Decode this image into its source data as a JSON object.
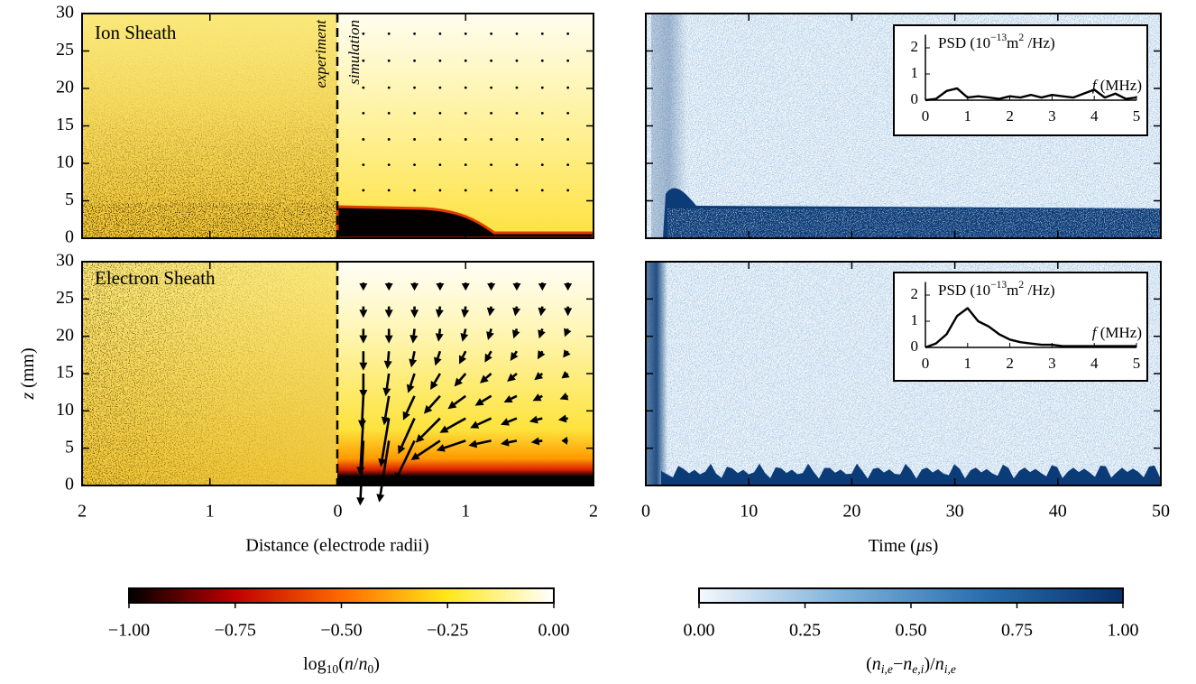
{
  "chart_data": [
    {
      "type": "heatmap",
      "title": "Ion Sheath",
      "annotations": [
        "experiment",
        "simulation"
      ],
      "xlim": [
        -2,
        2
      ],
      "xticks": [
        {
          "value": -2,
          "label": "2"
        },
        {
          "value": -1,
          "label": "1"
        },
        0,
        1,
        2
      ],
      "ylim": [
        0,
        30
      ],
      "yticks": [
        0,
        5,
        10,
        15,
        20,
        25,
        30
      ],
      "ylabel": [
        "z",
        " (mm)"
      ],
      "quiver_x": [
        0.2,
        0.4,
        0.6,
        0.8,
        1.0,
        1.2,
        1.4,
        1.6,
        1.8
      ],
      "quiver_z": [
        27.3,
        23.7,
        20.1,
        16.7,
        13.2,
        9.8,
        6.4
      ]
    },
    {
      "type": "heatmap",
      "title": "Electron Sheath",
      "xlim": [
        -2,
        2
      ],
      "xticks": [
        {
          "value": -2,
          "label": "2"
        },
        {
          "value": -1,
          "label": "1"
        },
        0,
        1,
        2
      ],
      "ylim": [
        0,
        30
      ],
      "yticks": [
        0,
        5,
        10,
        15,
        20,
        25,
        30
      ],
      "xlabel": "Distance (electrode radii)",
      "quiver_x": [
        0.2,
        0.4,
        0.6,
        0.8,
        1.0,
        1.2,
        1.4,
        1.6,
        1.8
      ],
      "quiver_z": [
        27.2,
        24,
        21,
        18,
        15,
        12,
        9,
        6
      ],
      "quiver_u": [
        [
          0,
          0,
          0,
          0,
          0,
          0,
          0,
          0,
          0
        ],
        [
          0,
          0,
          0,
          -0.1,
          -0.1,
          -0.1,
          -0.1,
          -0.1,
          0
        ],
        [
          0,
          0,
          -0.1,
          -0.1,
          -0.2,
          -0.2,
          -0.2,
          -0.2,
          -0.2
        ],
        [
          0,
          -0.1,
          -0.2,
          -0.3,
          -0.4,
          -0.4,
          -0.4,
          -0.3,
          -0.3
        ],
        [
          0,
          -0.2,
          -0.4,
          -0.6,
          -0.7,
          -0.7,
          -0.6,
          -0.5,
          -0.4
        ],
        [
          -0.1,
          -0.3,
          -0.7,
          -1.0,
          -1.1,
          -1.0,
          -0.8,
          -0.6,
          -0.5
        ],
        [
          -0.2,
          -0.5,
          -1.0,
          -1.5,
          -1.6,
          -1.3,
          -1.0,
          -0.8,
          -0.6
        ],
        [
          -0.2,
          -0.6,
          -1.2,
          -1.8,
          -1.8,
          -1.4,
          -1.0,
          -0.7,
          -0.4
        ]
      ],
      "quiver_w": [
        [
          -0.5,
          -0.5,
          -0.5,
          -0.5,
          -0.5,
          -0.5,
          -0.5,
          -0.5,
          -0.5
        ],
        [
          -0.7,
          -0.7,
          -0.7,
          -0.7,
          -0.7,
          -0.6,
          -0.6,
          -0.6,
          -0.6
        ],
        [
          -0.9,
          -0.9,
          -0.9,
          -0.8,
          -0.8,
          -0.7,
          -0.6,
          -0.6,
          -0.5
        ],
        [
          -1.2,
          -1.1,
          -1.0,
          -0.9,
          -0.8,
          -0.7,
          -0.6,
          -0.5,
          -0.4
        ],
        [
          -1.5,
          -1.4,
          -1.2,
          -1.0,
          -0.8,
          -0.6,
          -0.5,
          -0.4,
          -0.3
        ],
        [
          -2.0,
          -1.8,
          -1.5,
          -1.1,
          -0.8,
          -0.6,
          -0.4,
          -0.3,
          -0.2
        ],
        [
          -3.5,
          -3.0,
          -2.2,
          -1.5,
          -0.9,
          -0.6,
          -0.4,
          -0.2,
          -0.1
        ],
        [
          -4.0,
          -3.8,
          -2.5,
          -1.2,
          -0.6,
          -0.3,
          -0.2,
          -0.1,
          0
        ]
      ]
    },
    {
      "type": "heatmap",
      "xlim": [
        0,
        50
      ],
      "xticks": [
        0,
        10,
        20,
        30,
        40,
        50
      ],
      "ylim": [
        0,
        30
      ],
      "yticks": [
        0,
        5,
        10,
        15,
        20,
        25,
        30
      ]
    },
    {
      "type": "heatmap",
      "xlim": [
        0,
        50
      ],
      "xticks": [
        0,
        10,
        20,
        30,
        40,
        50
      ],
      "ylim": [
        0,
        30
      ],
      "yticks": [
        0,
        5,
        10,
        15,
        20,
        25,
        30
      ],
      "xlabel": [
        "Time (",
        "μ",
        "s)"
      ]
    },
    {
      "type": "line",
      "color": "#000000",
      "xlim": [
        0,
        5
      ],
      "ylim": [
        0,
        2.5
      ],
      "xticks": [
        0,
        1,
        2,
        3,
        4,
        5
      ],
      "yticks": [
        0,
        1,
        2
      ],
      "ylabel": [
        "PSD (10",
        "−13",
        "m",
        "2",
        " /Hz)"
      ],
      "xlabel": [
        "f",
        " (MHz)"
      ],
      "x": [
        0,
        0.25,
        0.5,
        0.75,
        1,
        1.25,
        1.5,
        1.75,
        2,
        2.25,
        2.5,
        2.75,
        3,
        3.25,
        3.5,
        3.75,
        4,
        4.25,
        4.5,
        4.75,
        5
      ],
      "values": [
        0,
        0.05,
        0.35,
        0.45,
        0.1,
        0.15,
        0.1,
        0.05,
        0.15,
        0.1,
        0.2,
        0.1,
        0.2,
        0.15,
        0.1,
        0.25,
        0.4,
        0.1,
        0.25,
        0.05,
        0.1
      ]
    },
    {
      "type": "line",
      "color": "#000000",
      "xlim": [
        0,
        5
      ],
      "ylim": [
        0,
        2.5
      ],
      "xticks": [
        0,
        1,
        2,
        3,
        4,
        5
      ],
      "yticks": [
        0,
        1,
        2
      ],
      "ylabel": [
        "PSD (10",
        "−13",
        "m",
        "2",
        " /Hz)"
      ],
      "xlabel": [
        "f",
        " (MHz)"
      ],
      "x": [
        0,
        0.25,
        0.5,
        0.75,
        1,
        1.25,
        1.5,
        1.75,
        2,
        2.25,
        2.5,
        2.75,
        3,
        3.25,
        3.5,
        3.75,
        4,
        4.25,
        4.5,
        4.75,
        5
      ],
      "values": [
        0,
        0.15,
        0.5,
        1.2,
        1.5,
        1.0,
        0.8,
        0.5,
        0.3,
        0.2,
        0.15,
        0.1,
        0.1,
        0.05,
        0.05,
        0.05,
        0.05,
        0.05,
        0.05,
        0.05,
        0.05
      ]
    },
    {
      "type": "colorbar",
      "lim": [
        -1,
        0
      ],
      "colors": [
        "#000000",
        "#c00000",
        "#ff6a00",
        "#ffe81a",
        "#ffffff"
      ],
      "ticks": [
        {
          "value": -1,
          "label": "−1.00"
        },
        {
          "value": -0.75,
          "label": "−0.75"
        },
        {
          "value": -0.5,
          "label": "−0.50"
        },
        {
          "value": -0.25,
          "label": "−0.25"
        },
        {
          "value": 0,
          "label": "0.00"
        }
      ],
      "label": [
        "log",
        "10",
        "(",
        "n",
        "/",
        "n",
        "0",
        ")"
      ]
    },
    {
      "type": "colorbar",
      "lim": [
        0,
        1
      ],
      "colors": [
        "#f4f8fd",
        "#7fb2da",
        "#2a6fb0",
        "#08306b"
      ],
      "ticks": [
        {
          "value": 0,
          "label": "0.00"
        },
        {
          "value": 0.25,
          "label": "0.25"
        },
        {
          "value": 0.5,
          "label": "0.50"
        },
        {
          "value": 0.75,
          "label": "0.75"
        },
        {
          "value": 1,
          "label": "1.00"
        }
      ],
      "label": [
        "(",
        "n",
        "i,e",
        "−",
        "n",
        "e,i",
        ")/",
        "n",
        "i,e"
      ]
    }
  ]
}
